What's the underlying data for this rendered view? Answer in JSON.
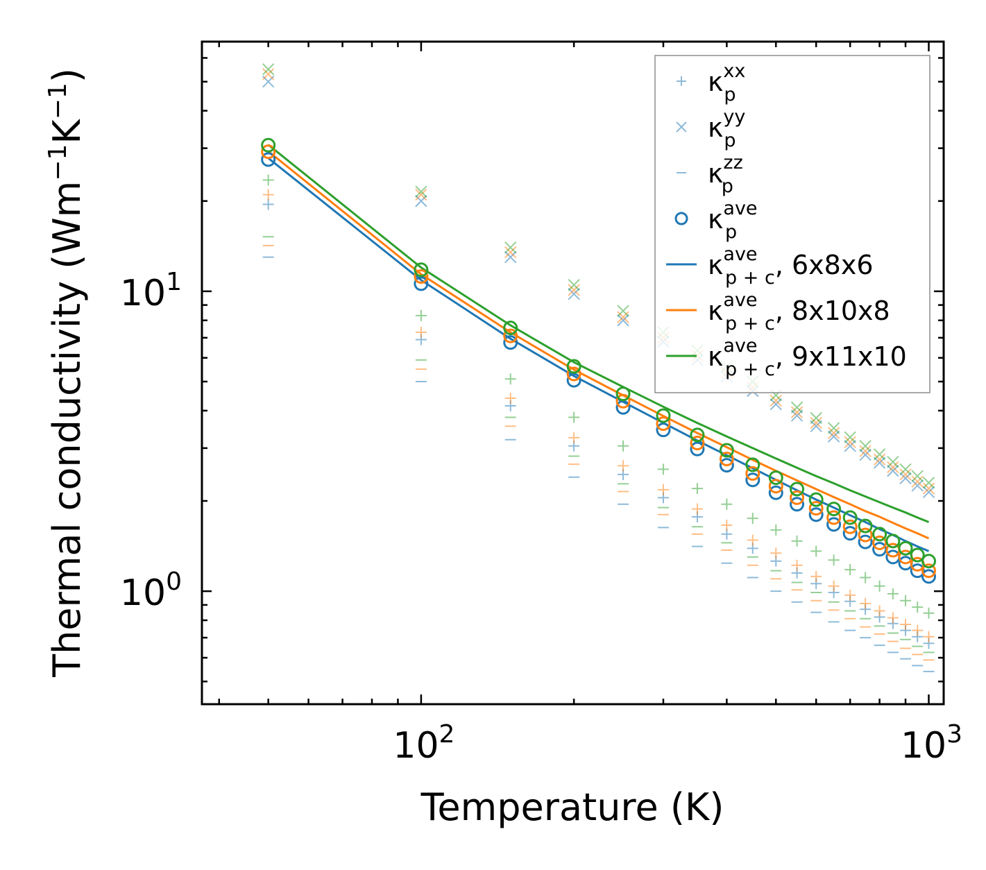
{
  "chart_data": {
    "type": "scatter",
    "xscale": "log",
    "yscale": "log",
    "xlabel": "Temperature (K)",
    "ylabel": "Thermal conductivity (Wm",
    "ylabel_parts": [
      "Thermal conductivity (Wm",
      "−1",
      "K",
      "−1",
      ")"
    ],
    "xlim": [
      37,
      1070
    ],
    "ylim": [
      0.42,
      68
    ],
    "x_major_ticks": [
      {
        "value": 100,
        "base": "10",
        "exp": "2"
      },
      {
        "value": 1000,
        "base": "10",
        "exp": "3"
      }
    ],
    "y_major_ticks": [
      {
        "value": 1,
        "base": "10",
        "exp": "0"
      },
      {
        "value": 10,
        "base": "10",
        "exp": "1"
      }
    ],
    "x": [
      50,
      100,
      150,
      200,
      250,
      300,
      350,
      400,
      450,
      500,
      550,
      600,
      650,
      700,
      750,
      800,
      850,
      900,
      950,
      1000
    ],
    "colors": {
      "blue": "#1f77b4",
      "orange": "#ff7f0e",
      "green": "#2ca02c"
    },
    "legend": {
      "location": "upper right",
      "entries": [
        {
          "symbol": "plus",
          "color": "#1f77b4",
          "alpha": 0.5,
          "kappa": "κ",
          "sub": "p",
          "sup": "xx",
          "suffix": ""
        },
        {
          "symbol": "x",
          "color": "#1f77b4",
          "alpha": 0.5,
          "kappa": "κ",
          "sub": "p",
          "sup": "yy",
          "suffix": ""
        },
        {
          "symbol": "hline",
          "color": "#1f77b4",
          "alpha": 0.5,
          "kappa": "κ",
          "sub": "p",
          "sup": "zz",
          "suffix": ""
        },
        {
          "symbol": "circle",
          "color": "#1f77b4",
          "alpha": 1.0,
          "kappa": "κ",
          "sub": "p",
          "sup": "ave",
          "suffix": ""
        },
        {
          "symbol": "line",
          "color": "#1f77b4",
          "alpha": 1.0,
          "kappa": "κ",
          "sub": "p + c",
          "sup": "ave",
          "suffix": ", 6x8x6"
        },
        {
          "symbol": "line",
          "color": "#ff7f0e",
          "alpha": 1.0,
          "kappa": "κ",
          "sub": "p + c",
          "sup": "ave",
          "suffix": ", 8x10x8"
        },
        {
          "symbol": "line",
          "color": "#2ca02c",
          "alpha": 1.0,
          "kappa": "κ",
          "sub": "p + c",
          "sup": "ave",
          "suffix": ", 9x11x10"
        }
      ]
    },
    "series": [
      {
        "name": "κp xx, 6x8x6",
        "marker": "plus",
        "color": "#1f77b4",
        "alpha": 0.5,
        "values": [
          19.5,
          6.9,
          4.15,
          3.05,
          2.45,
          2.05,
          1.77,
          1.55,
          1.39,
          1.26,
          1.15,
          1.06,
          0.99,
          0.925,
          0.87,
          0.82,
          0.78,
          0.74,
          0.705,
          0.67
        ]
      },
      {
        "name": "κp xx, 8x10x8",
        "marker": "plus",
        "color": "#ff7f0e",
        "alpha": 0.5,
        "values": [
          21.0,
          7.3,
          4.4,
          3.25,
          2.62,
          2.18,
          1.88,
          1.66,
          1.48,
          1.34,
          1.22,
          1.12,
          1.04,
          0.97,
          0.91,
          0.86,
          0.815,
          0.775,
          0.74,
          0.705
        ]
      },
      {
        "name": "κp xx, 9x11x10",
        "marker": "plus",
        "color": "#2ca02c",
        "alpha": 0.5,
        "values": [
          23.5,
          8.3,
          5.1,
          3.8,
          3.05,
          2.55,
          2.2,
          1.95,
          1.75,
          1.6,
          1.47,
          1.36,
          1.27,
          1.18,
          1.11,
          1.04,
          0.98,
          0.93,
          0.885,
          0.845
        ]
      },
      {
        "name": "κp yy, 6x8x6",
        "marker": "x",
        "color": "#1f77b4",
        "alpha": 0.5,
        "values": [
          50.0,
          20.0,
          13.0,
          9.8,
          8.0,
          6.8,
          5.9,
          5.2,
          4.65,
          4.2,
          3.85,
          3.55,
          3.28,
          3.05,
          2.85,
          2.68,
          2.52,
          2.38,
          2.25,
          2.14
        ]
      },
      {
        "name": "κp yy, 8x10x8",
        "marker": "x",
        "color": "#ff7f0e",
        "alpha": 0.5,
        "values": [
          53.0,
          21.0,
          13.5,
          10.1,
          8.2,
          7.0,
          6.1,
          5.35,
          4.78,
          4.32,
          3.95,
          3.64,
          3.37,
          3.14,
          2.93,
          2.75,
          2.59,
          2.45,
          2.32,
          2.2
        ]
      },
      {
        "name": "κp yy, 9x11x10",
        "marker": "x",
        "color": "#2ca02c",
        "alpha": 0.5,
        "values": [
          55.0,
          21.5,
          14.0,
          10.5,
          8.6,
          7.3,
          6.35,
          5.6,
          5.0,
          4.5,
          4.1,
          3.78,
          3.5,
          3.26,
          3.05,
          2.86,
          2.7,
          2.55,
          2.42,
          2.3
        ]
      },
      {
        "name": "κp zz, 6x8x6",
        "marker": "hline",
        "color": "#1f77b4",
        "alpha": 0.5,
        "values": [
          13.0,
          5.0,
          3.2,
          2.4,
          1.95,
          1.63,
          1.41,
          1.24,
          1.11,
          1.0,
          0.92,
          0.85,
          0.79,
          0.74,
          0.7,
          0.66,
          0.625,
          0.595,
          0.565,
          0.54
        ]
      },
      {
        "name": "κp zz, 8x10x8",
        "marker": "hline",
        "color": "#ff7f0e",
        "alpha": 0.5,
        "values": [
          14.2,
          5.5,
          3.55,
          2.65,
          2.15,
          1.8,
          1.55,
          1.37,
          1.22,
          1.1,
          1.01,
          0.93,
          0.865,
          0.81,
          0.76,
          0.72,
          0.68,
          0.645,
          0.615,
          0.59
        ]
      },
      {
        "name": "κp zz, 9x11x10",
        "marker": "hline",
        "color": "#2ca02c",
        "alpha": 0.5,
        "values": [
          15.2,
          5.9,
          3.8,
          2.82,
          2.28,
          1.9,
          1.64,
          1.45,
          1.3,
          1.17,
          1.07,
          0.99,
          0.92,
          0.86,
          0.81,
          0.765,
          0.725,
          0.69,
          0.655,
          0.625
        ]
      },
      {
        "name": "κp ave, 6x8x6",
        "marker": "circle",
        "color": "#1f77b4",
        "alpha": 1.0,
        "values": [
          27.5,
          10.6,
          6.75,
          5.05,
          4.1,
          3.45,
          2.98,
          2.63,
          2.35,
          2.13,
          1.95,
          1.8,
          1.67,
          1.56,
          1.46,
          1.38,
          1.3,
          1.24,
          1.17,
          1.12
        ]
      },
      {
        "name": "κp ave, 8x10x8",
        "marker": "circle",
        "color": "#ff7f0e",
        "alpha": 1.0,
        "values": [
          29.2,
          11.2,
          7.1,
          5.3,
          4.3,
          3.62,
          3.12,
          2.76,
          2.47,
          2.24,
          2.05,
          1.89,
          1.76,
          1.64,
          1.54,
          1.45,
          1.37,
          1.3,
          1.23,
          1.17
        ]
      },
      {
        "name": "κp ave, 9x11x10",
        "marker": "circle",
        "color": "#2ca02c",
        "alpha": 1.0,
        "values": [
          30.7,
          11.8,
          7.55,
          5.62,
          4.55,
          3.85,
          3.32,
          2.95,
          2.64,
          2.39,
          2.19,
          2.02,
          1.88,
          1.76,
          1.65,
          1.55,
          1.47,
          1.39,
          1.32,
          1.26
        ]
      },
      {
        "name": "κp+c ave, 6x8x6",
        "marker": "line",
        "color": "#1f77b4",
        "alpha": 1.0,
        "values": [
          27.8,
          10.9,
          6.95,
          5.22,
          4.28,
          3.64,
          3.18,
          2.84,
          2.57,
          2.35,
          2.17,
          2.02,
          1.9,
          1.79,
          1.7,
          1.61,
          1.54,
          1.47,
          1.41,
          1.36
        ]
      },
      {
        "name": "κp+c ave, 8x10x8",
        "marker": "line",
        "color": "#ff7f0e",
        "alpha": 1.0,
        "values": [
          29.3,
          11.4,
          7.3,
          5.48,
          4.5,
          3.84,
          3.37,
          3.02,
          2.74,
          2.52,
          2.34,
          2.19,
          2.06,
          1.95,
          1.85,
          1.77,
          1.69,
          1.62,
          1.56,
          1.5
        ]
      },
      {
        "name": "κp+c ave, 9x11x10",
        "marker": "line",
        "color": "#2ca02c",
        "alpha": 1.0,
        "values": [
          30.8,
          12.0,
          7.7,
          5.8,
          4.8,
          4.12,
          3.64,
          3.28,
          3.0,
          2.77,
          2.58,
          2.42,
          2.29,
          2.17,
          2.07,
          1.98,
          1.9,
          1.83,
          1.76,
          1.7
        ]
      }
    ]
  }
}
